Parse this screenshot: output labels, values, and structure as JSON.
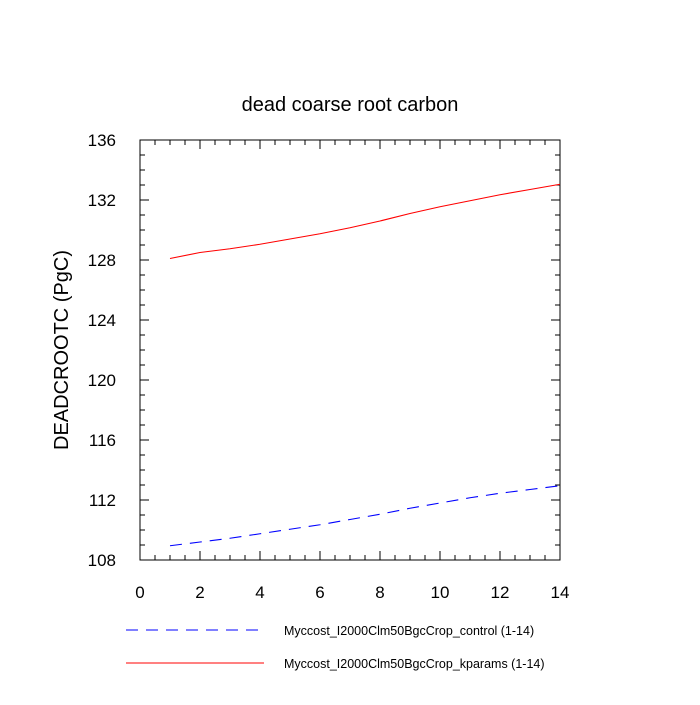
{
  "chart_data": {
    "type": "line",
    "title": "dead coarse root carbon",
    "xlabel": "",
    "ylabel": "DEADCROOTC  (PgC)",
    "xlim": [
      0,
      14
    ],
    "ylim": [
      108,
      136
    ],
    "xticks": [
      0,
      2,
      4,
      6,
      8,
      10,
      12,
      14
    ],
    "yticks": [
      108,
      112,
      116,
      120,
      124,
      128,
      132,
      136
    ],
    "grid": false,
    "legend_position": "bottom",
    "series": [
      {
        "name": "Myccost_I2000Clm50BgcCrop_control (1-14)",
        "color": "#0000ff",
        "dash": "dashed",
        "x": [
          1,
          2,
          3,
          4,
          5,
          6,
          7,
          8,
          9,
          10,
          11,
          12,
          13,
          14
        ],
        "values": [
          108.95,
          109.2,
          109.45,
          109.75,
          110.05,
          110.35,
          110.7,
          111.05,
          111.45,
          111.8,
          112.15,
          112.45,
          112.7,
          112.95
        ]
      },
      {
        "name": "Myccost_I2000Clm50BgcCrop_kparams (1-14)",
        "color": "#ff0000",
        "dash": "solid",
        "x": [
          1,
          2,
          3,
          4,
          5,
          6,
          7,
          8,
          9,
          10,
          11,
          12,
          13,
          14
        ],
        "values": [
          128.1,
          128.5,
          128.75,
          129.05,
          129.4,
          129.75,
          130.15,
          130.6,
          131.1,
          131.55,
          131.95,
          132.35,
          132.7,
          133.05
        ]
      }
    ]
  }
}
